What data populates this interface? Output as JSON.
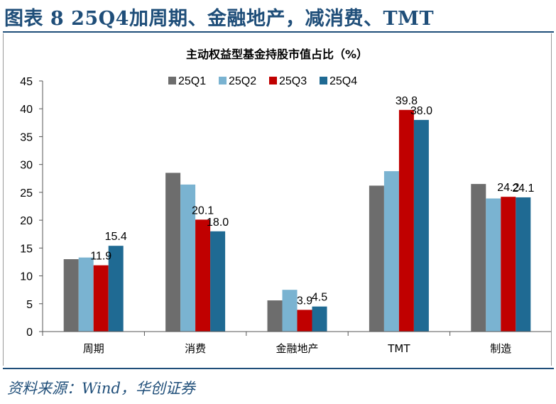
{
  "figure": {
    "title": "图表 8   25Q4加周期、金融地产，减消费、TMT",
    "source": "资料来源：Wind，华创证券"
  },
  "chart_data": {
    "type": "bar",
    "title": "主动权益型基金持股市值占比（%）",
    "categories": [
      "周期",
      "消费",
      "金融地产",
      "TMT",
      "制造"
    ],
    "series": [
      {
        "name": "25Q1",
        "color": "#6d6d6d",
        "values": [
          13.0,
          28.5,
          5.6,
          26.2,
          26.5
        ]
      },
      {
        "name": "25Q2",
        "color": "#7ab3d1",
        "values": [
          13.3,
          26.4,
          7.5,
          28.8,
          23.9
        ]
      },
      {
        "name": "25Q3",
        "color": "#c00000",
        "values": [
          11.9,
          20.1,
          3.9,
          39.8,
          24.2
        ]
      },
      {
        "name": "25Q4",
        "color": "#1f6a93",
        "values": [
          15.4,
          18.0,
          4.5,
          38.0,
          24.1
        ]
      }
    ],
    "data_labels": {
      "25Q3": [
        "11.9",
        "20.1",
        "3.9",
        "39.8",
        "24.2"
      ],
      "25Q4": [
        "15.4",
        "18.0",
        "4.5",
        "38.0",
        "24.1"
      ]
    },
    "ylim": [
      0,
      45
    ],
    "yticks": [
      0,
      5,
      10,
      15,
      20,
      25,
      30,
      35,
      40,
      45
    ],
    "xlabel": "",
    "ylabel": "",
    "legend_position": "top"
  }
}
